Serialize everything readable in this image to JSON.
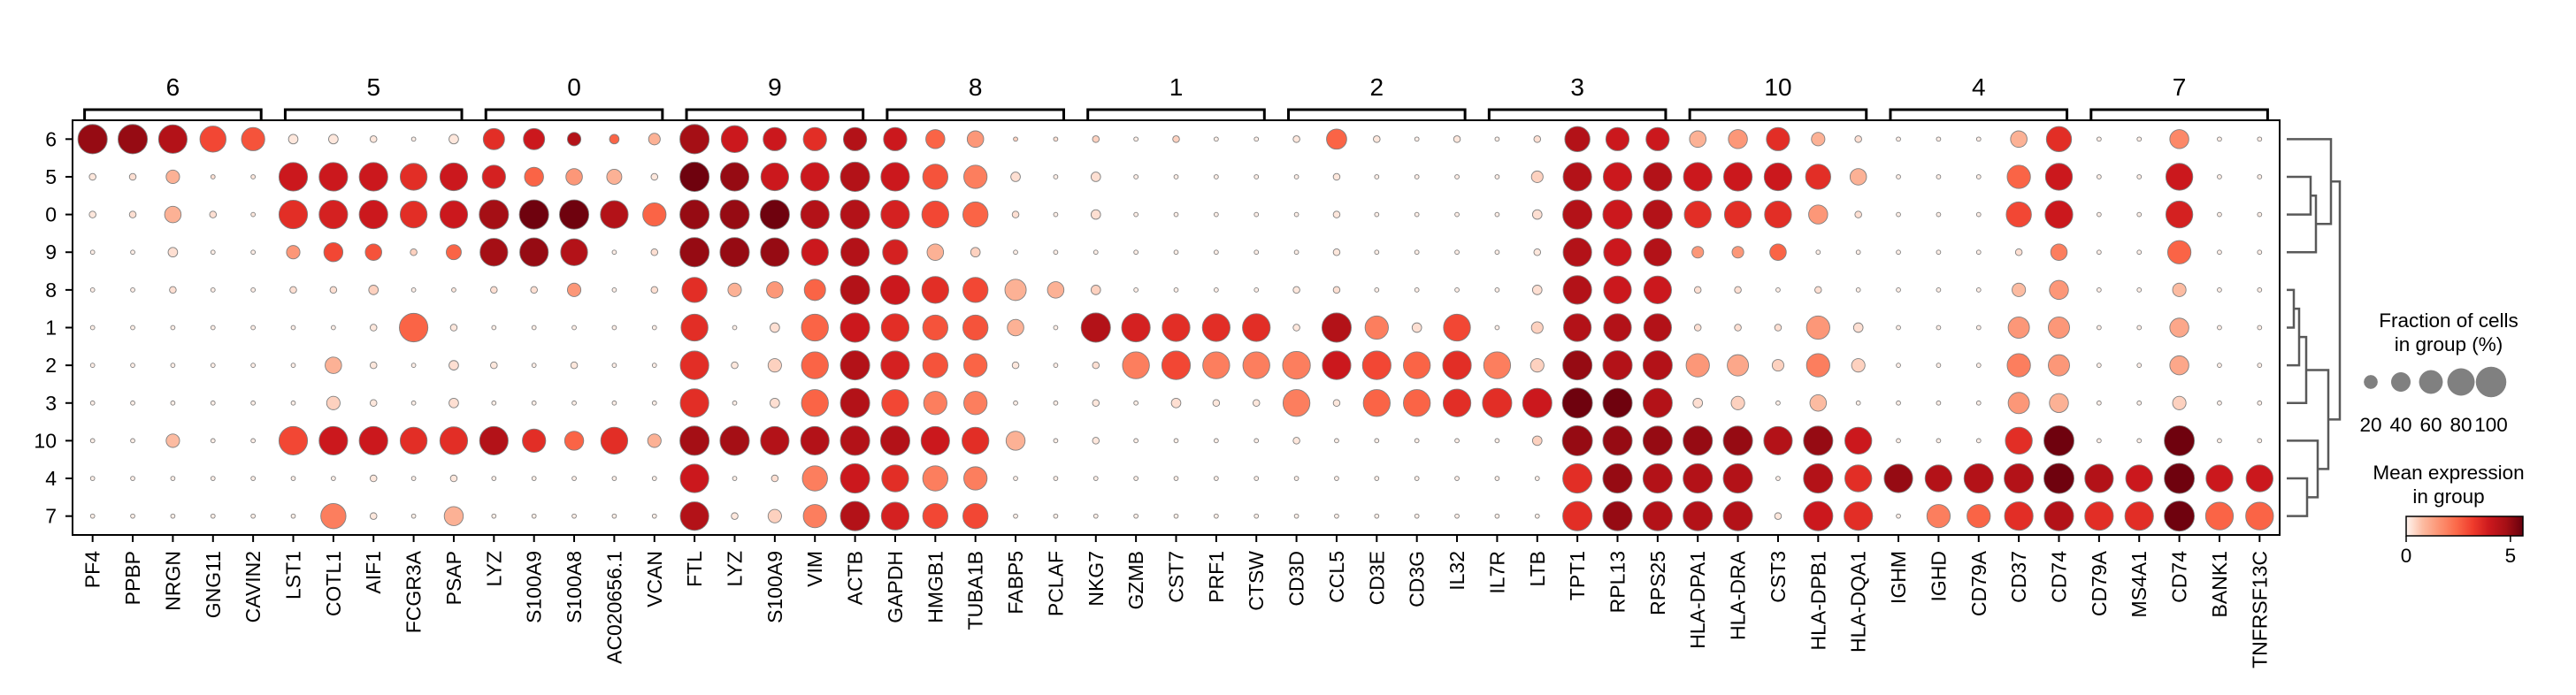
{
  "chart_data": {
    "type": "dotplot",
    "groups": [
      "6",
      "5",
      "0",
      "9",
      "8",
      "1",
      "2",
      "3",
      "10",
      "4",
      "7"
    ],
    "gene_groups": [
      {
        "label": "6",
        "genes": [
          "PF4",
          "PPBP",
          "NRGN",
          "GNG11",
          "CAVIN2"
        ]
      },
      {
        "label": "5",
        "genes": [
          "LST1",
          "COTL1",
          "AIF1",
          "FCGR3A",
          "PSAP"
        ]
      },
      {
        "label": "0",
        "genes": [
          "LYZ",
          "S100A9",
          "S100A8",
          "AC020656.1",
          "VCAN"
        ]
      },
      {
        "label": "9",
        "genes": [
          "FTL",
          "LYZ",
          "S100A9",
          "VIM",
          "ACTB"
        ]
      },
      {
        "label": "8",
        "genes": [
          "GAPDH",
          "HMGB1",
          "TUBA1B",
          "FABP5",
          "PCLAF"
        ]
      },
      {
        "label": "1",
        "genes": [
          "NKG7",
          "GZMB",
          "CST7",
          "PRF1",
          "CTSW"
        ]
      },
      {
        "label": "2",
        "genes": [
          "CD3D",
          "CCL5",
          "CD3E",
          "CD3G",
          "IL32"
        ]
      },
      {
        "label": "3",
        "genes": [
          "IL7R",
          "LTB",
          "TPT1",
          "RPL13",
          "RPS25"
        ]
      },
      {
        "label": "10",
        "genes": [
          "HLA-DPA1",
          "HLA-DRA",
          "CST3",
          "HLA-DPB1",
          "HLA-DQA1"
        ]
      },
      {
        "label": "4",
        "genes": [
          "IGHM",
          "IGHD",
          "CD79A",
          "CD37",
          "CD74"
        ]
      },
      {
        "label": "7",
        "genes": [
          "CD79A",
          "MS4A1",
          "CD74",
          "BANK1",
          "TNFRSF13C"
        ]
      }
    ],
    "fraction": [
      [
        95,
        95,
        90,
        75,
        60,
        10,
        10,
        5,
        2,
        10,
        50,
        50,
        20,
        10,
        15,
        95,
        80,
        60,
        60,
        60,
        60,
        40,
        30,
        2,
        2,
        5,
        2,
        5,
        2,
        2,
        5,
        45,
        5,
        2,
        5,
        2,
        5,
        70,
        60,
        60,
        30,
        40,
        60,
        20,
        5,
        2,
        2,
        2,
        30,
        70,
        2,
        2,
        40,
        2,
        2
      ],
      [
        5,
        5,
        20,
        2,
        2,
        90,
        90,
        90,
        80,
        85,
        60,
        40,
        30,
        25,
        5,
        95,
        90,
        85,
        90,
        95,
        90,
        70,
        60,
        10,
        2,
        10,
        2,
        2,
        2,
        2,
        2,
        5,
        2,
        2,
        2,
        2,
        15,
        90,
        90,
        90,
        90,
        90,
        85,
        70,
        30,
        2,
        2,
        2,
        60,
        80,
        2,
        2,
        80,
        2,
        2
      ],
      [
        5,
        5,
        30,
        5,
        2,
        90,
        90,
        90,
        80,
        85,
        95,
        95,
        95,
        85,
        60,
        95,
        95,
        95,
        90,
        95,
        90,
        80,
        70,
        5,
        2,
        10,
        2,
        2,
        2,
        2,
        2,
        5,
        2,
        2,
        2,
        2,
        10,
        95,
        95,
        95,
        80,
        80,
        80,
        40,
        5,
        2,
        2,
        2,
        70,
        85,
        2,
        2,
        80,
        2,
        2
      ],
      [
        2,
        2,
        10,
        2,
        2,
        20,
        40,
        30,
        5,
        25,
        85,
        90,
        80,
        2,
        5,
        95,
        95,
        90,
        80,
        90,
        70,
        30,
        10,
        2,
        2,
        2,
        2,
        2,
        2,
        2,
        2,
        5,
        2,
        2,
        2,
        2,
        5,
        90,
        85,
        85,
        15,
        15,
        30,
        2,
        2,
        2,
        2,
        2,
        5,
        30,
        2,
        2,
        60,
        2,
        2
      ],
      [
        2,
        2,
        5,
        2,
        2,
        5,
        5,
        10,
        2,
        2,
        5,
        5,
        20,
        2,
        5,
        70,
        20,
        30,
        50,
        95,
        95,
        80,
        70,
        50,
        30,
        10,
        2,
        2,
        2,
        2,
        5,
        5,
        2,
        2,
        2,
        2,
        10,
        90,
        85,
        85,
        5,
        5,
        2,
        5,
        2,
        2,
        2,
        2,
        20,
        40,
        2,
        2,
        20,
        2,
        2
      ],
      [
        2,
        2,
        2,
        2,
        2,
        2,
        2,
        5,
        90,
        5,
        2,
        2,
        2,
        2,
        2,
        80,
        2,
        10,
        80,
        95,
        85,
        70,
        70,
        30,
        2,
        95,
        90,
        85,
        85,
        85,
        5,
        95,
        60,
        10,
        80,
        2,
        15,
        85,
        85,
        85,
        5,
        5,
        5,
        60,
        10,
        2,
        2,
        2,
        50,
        50,
        2,
        2,
        40,
        2,
        2
      ],
      [
        2,
        2,
        2,
        2,
        2,
        2,
        30,
        5,
        2,
        10,
        5,
        2,
        5,
        2,
        2,
        90,
        5,
        20,
        80,
        95,
        90,
        70,
        60,
        5,
        2,
        5,
        80,
        90,
        80,
        80,
        85,
        90,
        90,
        80,
        90,
        80,
        20,
        95,
        95,
        95,
        60,
        50,
        15,
        60,
        20,
        2,
        2,
        2,
        60,
        50,
        2,
        2,
        40,
        2,
        2
      ],
      [
        2,
        2,
        2,
        2,
        2,
        2,
        20,
        5,
        2,
        10,
        2,
        2,
        2,
        2,
        2,
        90,
        2,
        10,
        80,
        95,
        80,
        60,
        60,
        2,
        2,
        5,
        2,
        10,
        5,
        5,
        80,
        5,
        80,
        80,
        85,
        95,
        95,
        100,
        95,
        95,
        10,
        20,
        2,
        30,
        2,
        2,
        2,
        2,
        50,
        40,
        2,
        2,
        20,
        2,
        2
      ],
      [
        2,
        2,
        20,
        2,
        2,
        90,
        90,
        90,
        80,
        85,
        90,
        60,
        40,
        80,
        20,
        95,
        95,
        90,
        90,
        95,
        95,
        90,
        80,
        40,
        2,
        5,
        2,
        2,
        2,
        2,
        5,
        2,
        2,
        2,
        2,
        2,
        10,
        100,
        95,
        95,
        95,
        95,
        90,
        95,
        80,
        2,
        2,
        2,
        80,
        100,
        2,
        2,
        100,
        2,
        2
      ],
      [
        2,
        2,
        2,
        2,
        2,
        2,
        2,
        5,
        2,
        5,
        2,
        2,
        2,
        2,
        2,
        90,
        2,
        5,
        70,
        95,
        80,
        70,
        60,
        2,
        2,
        2,
        2,
        2,
        2,
        2,
        2,
        2,
        2,
        2,
        2,
        2,
        2,
        95,
        95,
        95,
        95,
        95,
        2,
        95,
        80,
        90,
        80,
        95,
        95,
        100,
        90,
        80,
        100,
        80,
        80
      ],
      [
        2,
        2,
        2,
        2,
        2,
        2,
        70,
        5,
        2,
        40,
        2,
        2,
        2,
        2,
        2,
        90,
        5,
        20,
        60,
        95,
        85,
        70,
        70,
        2,
        2,
        2,
        2,
        2,
        2,
        2,
        2,
        2,
        2,
        2,
        2,
        2,
        2,
        95,
        95,
        95,
        95,
        95,
        5,
        95,
        90,
        2,
        60,
        60,
        90,
        95,
        90,
        90,
        100,
        85,
        85
      ]
    ],
    "expression": [
      [
        5.0,
        5.0,
        4.5,
        3.0,
        2.8,
        0.2,
        0.2,
        0.2,
        0.1,
        0.2,
        3.5,
        4.0,
        4.5,
        2.5,
        1.0,
        4.8,
        4.0,
        4.0,
        3.5,
        4.5,
        4.0,
        2.5,
        1.5,
        0.5,
        0.3,
        0.5,
        0.1,
        0.5,
        0.1,
        0.1,
        0.2,
        2.5,
        0.2,
        0.1,
        0.2,
        0.1,
        0.3,
        4.5,
        4.0,
        4.0,
        1.0,
        1.5,
        3.5,
        1.0,
        0.3,
        0.1,
        0.1,
        0.1,
        1.0,
        3.5,
        0.1,
        0.1,
        1.8,
        0.1,
        0.1
      ],
      [
        0.2,
        0.3,
        1.0,
        0.3,
        0.2,
        4.0,
        4.0,
        4.0,
        3.5,
        4.0,
        3.8,
        2.5,
        1.5,
        1.0,
        0.2,
        5.5,
        5.0,
        4.0,
        4.0,
        4.5,
        4.0,
        2.8,
        2.0,
        0.3,
        0.1,
        0.3,
        0.1,
        0.1,
        0.1,
        0.1,
        0.1,
        0.2,
        0.1,
        0.1,
        0.1,
        0.1,
        0.5,
        4.5,
        4.0,
        4.5,
        4.0,
        4.0,
        4.0,
        3.5,
        1.0,
        0.1,
        0.1,
        0.1,
        2.5,
        4.0,
        0.1,
        0.1,
        4.0,
        0.1,
        0.1
      ],
      [
        0.2,
        0.3,
        1.0,
        0.3,
        0.2,
        3.5,
        3.8,
        4.0,
        3.5,
        4.0,
        4.8,
        5.5,
        5.5,
        4.5,
        2.5,
        5.0,
        5.0,
        5.5,
        4.5,
        4.5,
        3.8,
        3.0,
        2.5,
        0.3,
        0.1,
        0.3,
        0.1,
        0.1,
        0.1,
        0.1,
        0.1,
        0.2,
        0.1,
        0.1,
        0.1,
        0.1,
        0.3,
        4.5,
        4.0,
        4.5,
        3.5,
        3.5,
        3.5,
        1.5,
        0.3,
        0.1,
        0.1,
        0.1,
        3.0,
        4.0,
        0.1,
        0.1,
        3.8,
        0.1,
        0.1
      ],
      [
        0.1,
        0.1,
        0.3,
        0.1,
        0.1,
        1.5,
        3.0,
        2.8,
        0.5,
        2.5,
        4.8,
        5.0,
        4.5,
        0.1,
        0.3,
        5.0,
        5.0,
        5.0,
        4.0,
        4.5,
        3.8,
        1.0,
        0.5,
        0.1,
        0.1,
        0.1,
        0.1,
        0.1,
        0.1,
        0.1,
        0.1,
        0.2,
        0.1,
        0.1,
        0.1,
        0.1,
        0.2,
        4.5,
        4.0,
        4.5,
        1.5,
        1.5,
        2.5,
        0.1,
        0.1,
        0.1,
        0.1,
        0.1,
        0.3,
        2.0,
        0.1,
        0.1,
        2.5,
        0.1,
        0.1
      ],
      [
        0.1,
        0.1,
        0.3,
        0.1,
        0.1,
        0.3,
        0.3,
        0.5,
        0.1,
        0.2,
        0.3,
        0.3,
        1.5,
        0.1,
        0.3,
        3.5,
        1.0,
        1.5,
        2.5,
        4.5,
        4.0,
        3.5,
        3.0,
        1.0,
        1.0,
        0.5,
        0.1,
        0.1,
        0.1,
        0.1,
        0.2,
        0.3,
        0.1,
        0.1,
        0.1,
        0.1,
        0.3,
        4.5,
        4.0,
        4.0,
        0.3,
        0.3,
        0.1,
        0.3,
        0.1,
        0.1,
        0.1,
        0.1,
        0.8,
        1.5,
        0.1,
        0.1,
        0.8,
        0.1,
        0.1
      ],
      [
        0.1,
        0.1,
        0.1,
        0.1,
        0.1,
        0.1,
        0.1,
        0.2,
        2.5,
        0.2,
        0.1,
        0.1,
        0.1,
        0.1,
        0.1,
        3.5,
        0.1,
        0.3,
        2.5,
        4.0,
        3.5,
        2.8,
        2.8,
        1.0,
        0.1,
        4.5,
        3.8,
        3.5,
        3.5,
        3.5,
        0.2,
        4.5,
        2.0,
        0.3,
        3.0,
        0.1,
        0.5,
        4.5,
        4.5,
        4.5,
        0.3,
        0.3,
        0.3,
        1.5,
        0.3,
        0.1,
        0.1,
        0.1,
        1.5,
        1.5,
        0.1,
        0.1,
        1.2,
        0.1,
        0.1
      ],
      [
        0.1,
        0.1,
        0.1,
        0.1,
        0.1,
        0.1,
        1.0,
        0.2,
        0.1,
        0.3,
        0.2,
        0.1,
        0.2,
        0.1,
        0.1,
        3.5,
        0.2,
        0.5,
        2.5,
        4.5,
        3.8,
        2.8,
        2.5,
        0.2,
        0.1,
        0.3,
        2.0,
        3.0,
        2.0,
        2.0,
        2.0,
        4.0,
        3.0,
        2.5,
        3.5,
        2.0,
        0.5,
        5.0,
        4.5,
        4.5,
        1.5,
        1.2,
        0.5,
        2.0,
        0.5,
        0.1,
        0.1,
        0.1,
        2.0,
        1.5,
        0.1,
        0.1,
        1.2,
        0.1,
        0.1
      ],
      [
        0.1,
        0.1,
        0.1,
        0.1,
        0.1,
        0.1,
        0.5,
        0.2,
        0.1,
        0.3,
        0.1,
        0.1,
        0.1,
        0.1,
        0.1,
        3.5,
        0.1,
        0.3,
        2.5,
        4.5,
        3.0,
        2.0,
        2.0,
        0.1,
        0.1,
        0.2,
        0.1,
        0.3,
        0.2,
        0.2,
        2.0,
        0.2,
        2.5,
        2.5,
        3.5,
        3.5,
        4.0,
        5.5,
        5.5,
        4.5,
        0.3,
        0.5,
        0.1,
        0.8,
        0.1,
        0.1,
        0.1,
        0.1,
        1.5,
        1.0,
        0.1,
        0.1,
        0.5,
        0.1,
        0.1
      ],
      [
        0.1,
        0.1,
        0.8,
        0.1,
        0.1,
        3.0,
        4.0,
        4.0,
        3.5,
        3.5,
        4.5,
        3.5,
        2.5,
        3.5,
        1.0,
        4.8,
        4.8,
        4.5,
        4.5,
        4.5,
        4.5,
        4.0,
        3.5,
        1.0,
        0.1,
        0.2,
        0.1,
        0.1,
        0.1,
        0.1,
        0.2,
        0.1,
        0.1,
        0.1,
        0.1,
        0.1,
        0.5,
        5.0,
        5.0,
        5.0,
        5.0,
        5.0,
        4.5,
        5.0,
        4.0,
        0.1,
        0.1,
        0.1,
        3.5,
        5.5,
        0.1,
        0.1,
        5.5,
        0.1,
        0.1
      ],
      [
        0.1,
        0.1,
        0.1,
        0.1,
        0.1,
        0.1,
        0.1,
        0.2,
        0.1,
        0.2,
        0.1,
        0.1,
        0.1,
        0.1,
        0.1,
        4.0,
        0.1,
        0.3,
        2.0,
        4.0,
        3.5,
        2.0,
        2.0,
        0.1,
        0.1,
        0.1,
        0.1,
        0.1,
        0.1,
        0.1,
        0.1,
        0.1,
        0.1,
        0.1,
        0.1,
        0.1,
        0.1,
        3.5,
        5.0,
        4.5,
        4.5,
        4.5,
        0.1,
        4.5,
        3.5,
        5.0,
        4.5,
        4.5,
        4.5,
        5.5,
        4.5,
        4.0,
        5.5,
        4.0,
        4.0
      ],
      [
        0.1,
        0.1,
        0.1,
        0.1,
        0.1,
        0.1,
        2.0,
        0.2,
        0.1,
        1.0,
        0.1,
        0.1,
        0.1,
        0.1,
        0.1,
        4.5,
        0.2,
        0.5,
        2.0,
        4.5,
        3.8,
        3.0,
        3.0,
        0.1,
        0.1,
        0.1,
        0.1,
        0.1,
        0.1,
        0.1,
        0.1,
        0.1,
        0.1,
        0.1,
        0.1,
        0.1,
        0.1,
        3.5,
        5.0,
        4.5,
        4.5,
        4.5,
        0.2,
        4.0,
        3.5,
        0.1,
        2.0,
        2.5,
        3.5,
        4.5,
        3.5,
        3.5,
        5.5,
        2.5,
        2.5
      ]
    ],
    "dendrogram_order": [
      "6",
      "5",
      "0",
      "9",
      "8",
      "1",
      "2",
      "3",
      "10",
      "4",
      "7"
    ],
    "legend_size": {
      "title": "Fraction of cells\nin group (%)",
      "ticks": [
        "20",
        "40",
        "60",
        "80",
        "100"
      ]
    },
    "legend_color": {
      "title": "Mean expression\nin group",
      "ticks": [
        "0",
        "5"
      ],
      "range": [
        0,
        5.6
      ],
      "colormap": "Reds",
      "stops": [
        "#fff5f0",
        "#fcbba1",
        "#fc9272",
        "#fb6a4a",
        "#ef3b2c",
        "#cb181d",
        "#a50f15",
        "#67000d"
      ]
    },
    "colors": {
      "dot_edge": "#808080",
      "frame": "#000000",
      "legend_dot": "#808080",
      "dendrogram": "#595959"
    }
  }
}
